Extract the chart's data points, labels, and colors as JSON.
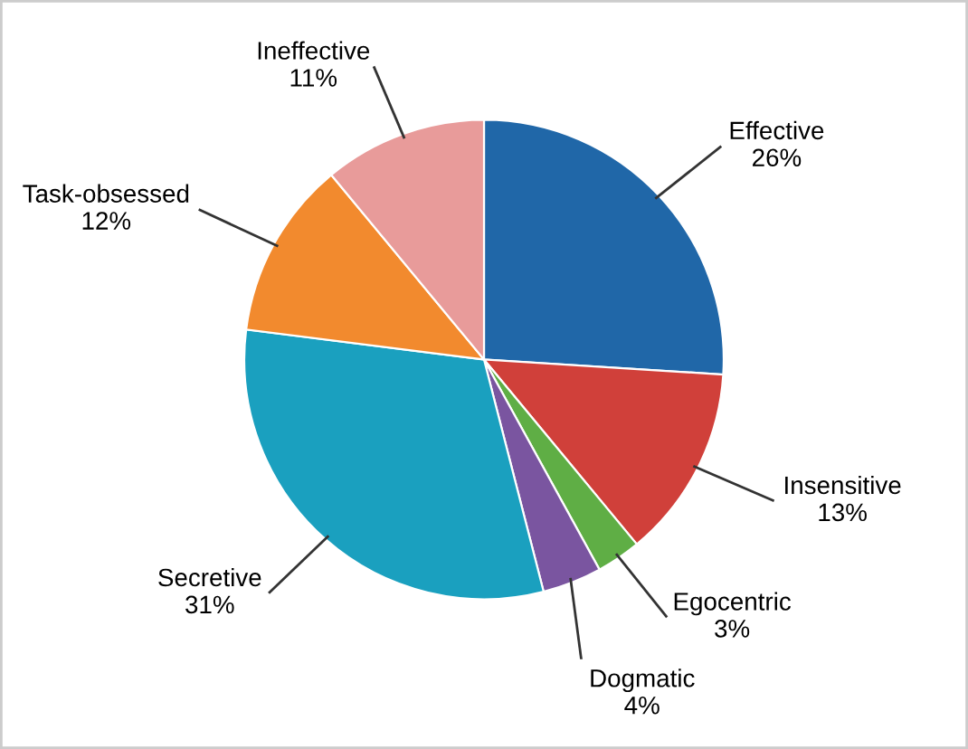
{
  "chart_data": {
    "type": "pie",
    "categories": [
      "Effective",
      "Insensitive",
      "Egocentric",
      "Dogmatic",
      "Secretive",
      "Task-obsessed",
      "Ineffective"
    ],
    "values": [
      26,
      13,
      3,
      4,
      31,
      12,
      11
    ],
    "colors": [
      "#2067a8",
      "#d0403a",
      "#5fae45",
      "#7a55a0",
      "#1aa0bf",
      "#f28a2e",
      "#e89b9a"
    ],
    "value_labels": [
      "26%",
      "13%",
      "3%",
      "4%",
      "31%",
      "12%",
      "11%"
    ]
  }
}
